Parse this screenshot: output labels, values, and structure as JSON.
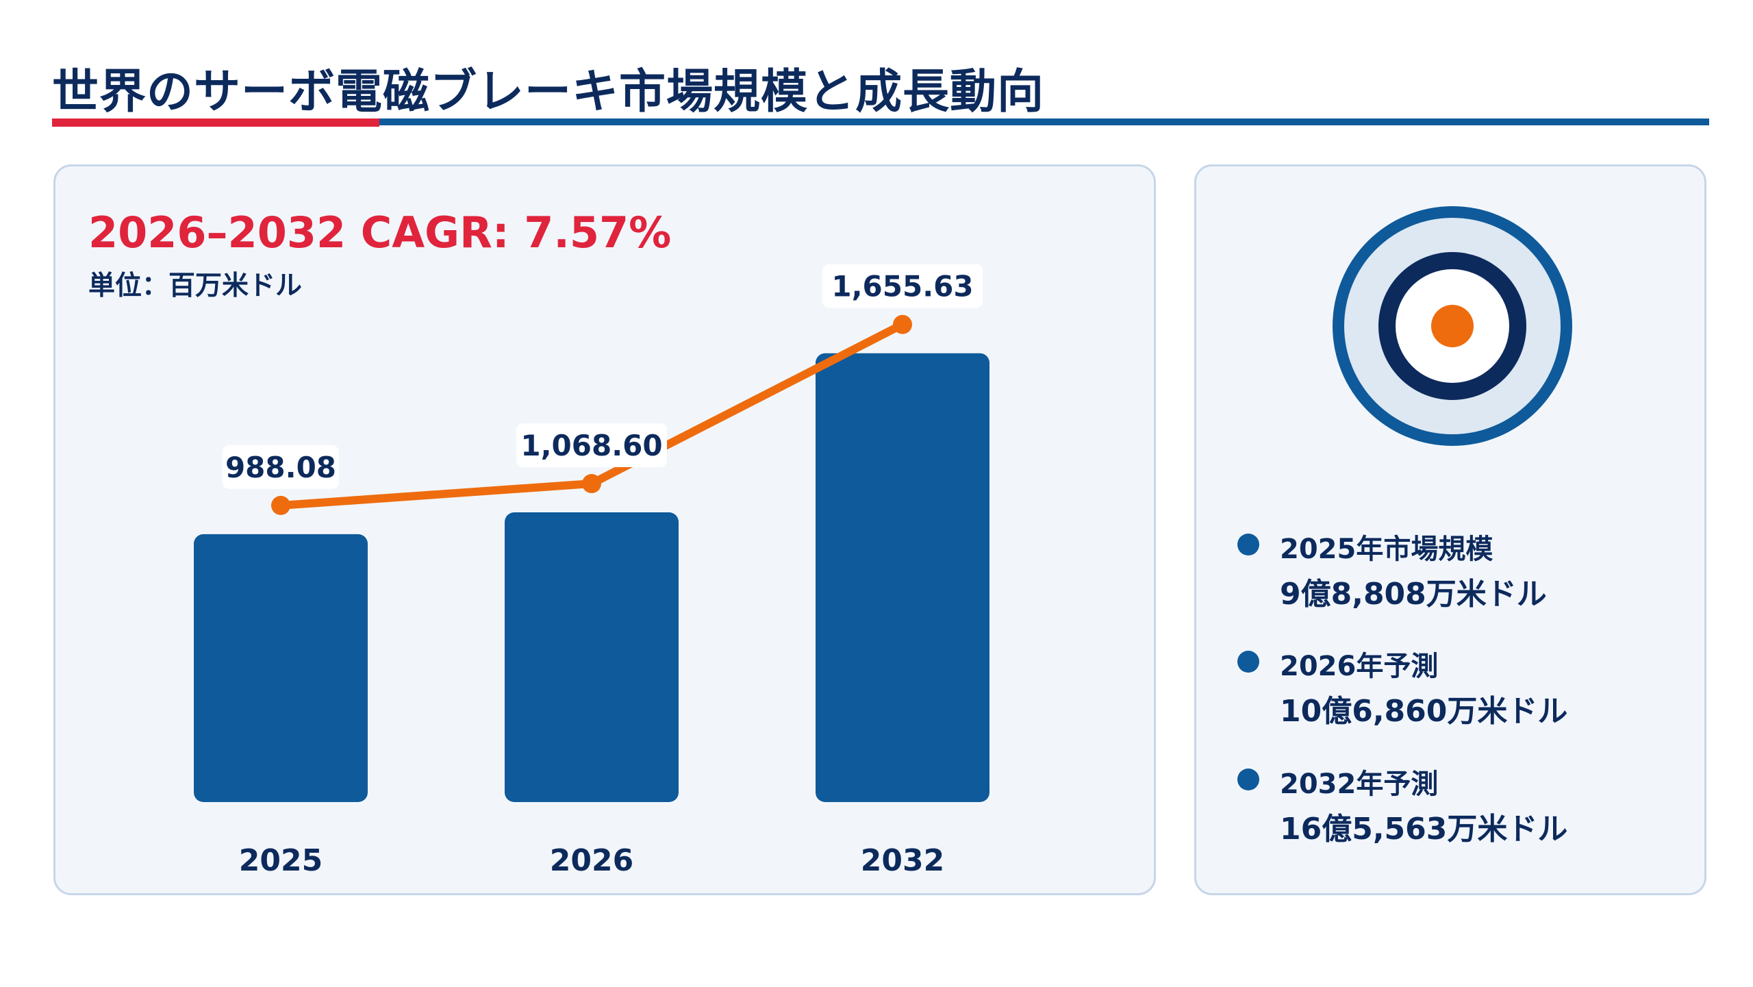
{
  "header": {
    "title": "世界のサーボ電磁ブレーキ市場規模と成長動向"
  },
  "colors": {
    "accent_red": "#e0243c",
    "bar_blue": "#0f5a9a",
    "line_orange": "#ee6c0e",
    "text_navy": "#0d2a5c"
  },
  "chart_panel": {
    "cagr": "2026–2032 CAGR: 7.57%",
    "unit": "単位：百万米ドル"
  },
  "chart_data": {
    "type": "bar",
    "categories": [
      "2025",
      "2026",
      "2032"
    ],
    "values": [
      988.08,
      1068.6,
      1655.63
    ],
    "value_labels": [
      "988.08",
      "1,068.60",
      "1,655.63"
    ],
    "overlay": "line",
    "ylim": [
      0,
      1900
    ],
    "grid": false,
    "legend": "none"
  },
  "side_panel": {
    "icon": "target-icon",
    "items": [
      {
        "label": "2025年市場規模",
        "value": "9億8,808万米ドル"
      },
      {
        "label": "2026年予測",
        "value": "10億6,860万米ドル"
      },
      {
        "label": "2032年予測",
        "value": "16億5,563万米ドル"
      }
    ]
  }
}
